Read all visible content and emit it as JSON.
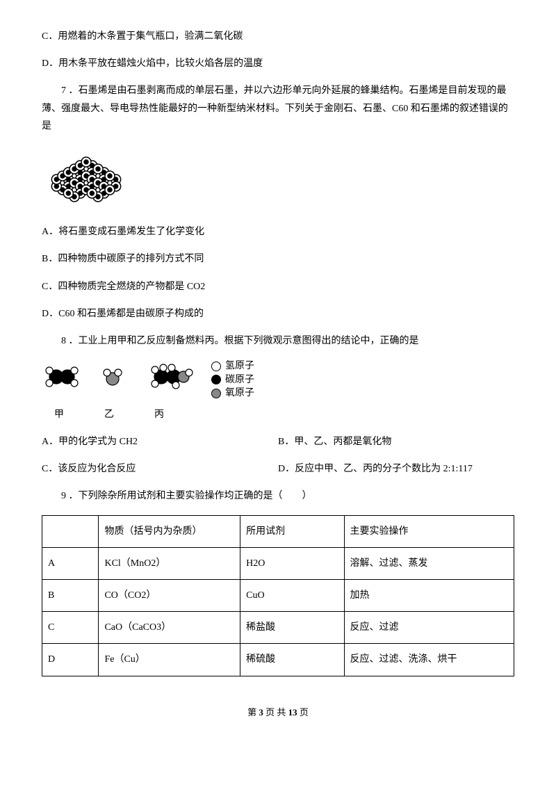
{
  "q6": {
    "optionC": "C．用燃着的木条置于集气瓶口，验满二氧化碳",
    "optionD": "D．用木条平放在蜡烛火焰中，比较火焰各层的温度"
  },
  "q7": {
    "stem": "7 ．石墨烯是由石墨剥离而成的单层石墨，并以六边形单元向外延展的蜂巢结构。石墨烯是目前发现的最薄、强度最大、导电导热性能最好的一种新型纳米材料。下列关于金刚石、石墨、C60 和石墨烯的叙述错误的是",
    "optionA": "A．将石墨变成石墨烯发生了化学变化",
    "optionB": "B．四种物质中碳原子的排列方式不同",
    "optionC": "C．四种物质完全燃烧的产物都是 CO2",
    "optionD": "D．C60 和石墨烯都是由碳原子构成的",
    "figure": {
      "type": "network",
      "node_color": "#ffffff",
      "edge_color": "#000000",
      "joint_color": "#000000",
      "hex_count": 7,
      "node_radius": 7,
      "joint_radius": 3
    }
  },
  "q8": {
    "stem": "8 ．工业上用甲和乙反应制备燃料丙。根据下列微观示意图得出的结论中，正确的是",
    "label_jia": "甲",
    "label_yi": "乙",
    "label_bing": "丙",
    "legend_h": "氢原子",
    "legend_c": "碳原子",
    "legend_o": "氧原子",
    "colors": {
      "h": "#ffffff",
      "c": "#000000",
      "o": "#888888",
      "stroke": "#000000"
    },
    "optionA": "A．甲的化学式为 CH2",
    "optionB": "B．甲、乙、丙都是氧化物",
    "optionC": "C．该反应为化合反应",
    "optionD": "D．反应中甲、乙、丙的分子个数比为 2:1:117"
  },
  "q9": {
    "stem": "9 ．下列除杂所用试剂和主要实验操作均正确的是（　　）",
    "table": {
      "columns": [
        "",
        "物质（括号内为杂质）",
        "所用试剂",
        "主要实验操作"
      ],
      "col_widths": [
        "12%",
        "30%",
        "22%",
        "36%"
      ],
      "rows": [
        [
          "A",
          "KCl（MnO2）",
          "H2O",
          "溶解、过滤、蒸发"
        ],
        [
          "B",
          "CO（CO2）",
          "CuO",
          "加热"
        ],
        [
          "C",
          "CaO（CaCO3）",
          "稀盐酸",
          "反应、过滤"
        ],
        [
          "D",
          "Fe（Cu）",
          "稀硫酸",
          "反应、过滤、洗涤、烘干"
        ]
      ]
    }
  },
  "footer": {
    "prefix": "第 ",
    "page": "3",
    "mid": " 页 共 ",
    "total": "13",
    "suffix": " 页"
  }
}
